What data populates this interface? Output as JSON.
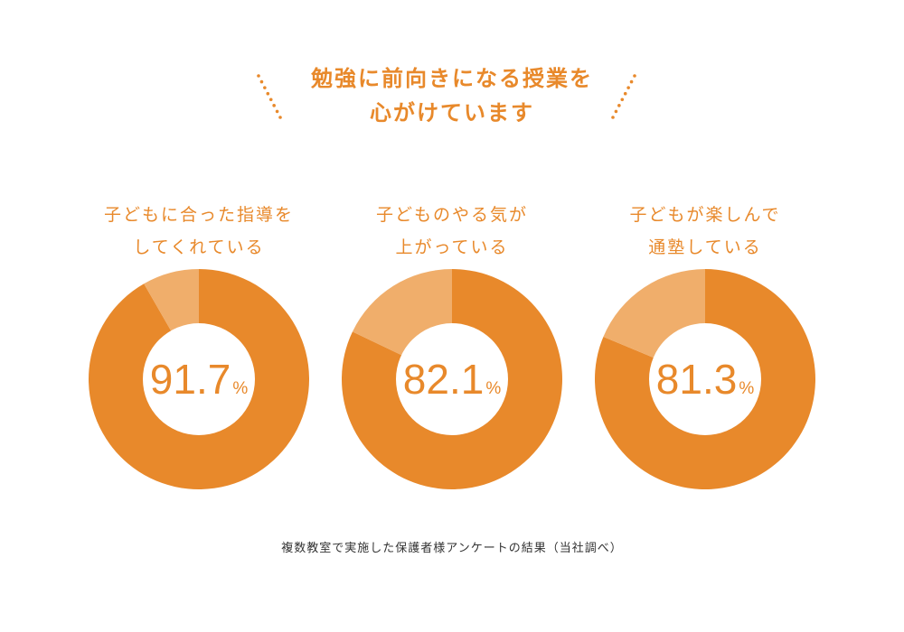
{
  "headline": {
    "line1": "勉強に前向きになる授業を",
    "line2": "心がけています"
  },
  "colors": {
    "accent": "#e8892b",
    "remainder": "#f0ae6b",
    "hole": "#ffffff",
    "footnote": "#333333"
  },
  "chart_data": [
    {
      "type": "pie",
      "title_lines": [
        "子どもに合った指導を",
        "してくれている"
      ],
      "value": 91.7,
      "value_label": "91.7",
      "unit": "%",
      "slices": [
        {
          "label": "",
          "value": 91.7
        },
        {
          "label": "",
          "value": 8.3
        }
      ]
    },
    {
      "type": "pie",
      "title_lines": [
        "子どものやる気が",
        "上がっている"
      ],
      "value": 82.1,
      "value_label": "82.1",
      "unit": "%",
      "slices": [
        {
          "label": "",
          "value": 82.1
        },
        {
          "label": "",
          "value": 17.9
        }
      ]
    },
    {
      "type": "pie",
      "title_lines": [
        "子どもが楽しんで",
        "通塾している"
      ],
      "value": 81.3,
      "value_label": "81.3",
      "unit": "%",
      "slices": [
        {
          "label": "",
          "value": 81.3
        },
        {
          "label": "",
          "value": 18.7
        }
      ]
    }
  ],
  "footnote": "複数教室で実施した保護者様アンケートの結果（当社調べ）"
}
